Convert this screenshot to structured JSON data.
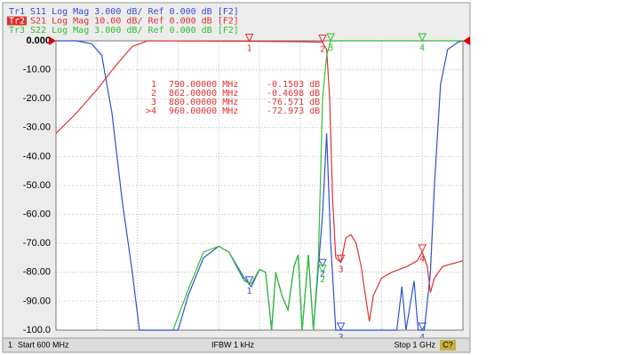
{
  "chart_data": {
    "type": "line",
    "xlim": [
      600,
      1000
    ],
    "ylim": [
      -100,
      0
    ],
    "xticks": [
      600,
      640,
      680,
      720,
      760,
      800,
      840,
      880,
      920,
      960,
      1000
    ],
    "yticks": [
      {
        "value": 0,
        "label": "0.000"
      },
      {
        "value": -10,
        "label": "-10.00"
      },
      {
        "value": -20,
        "label": "-20.00"
      },
      {
        "value": -30,
        "label": "-30.00"
      },
      {
        "value": -40,
        "label": "-40.00"
      },
      {
        "value": -50,
        "label": "-50.00"
      },
      {
        "value": -60,
        "label": "-60.00"
      },
      {
        "value": -70,
        "label": "-70.00"
      },
      {
        "value": -80,
        "label": "-80.00"
      },
      {
        "value": -90,
        "label": "-90.00"
      },
      {
        "value": -100,
        "label": "-100.0"
      }
    ],
    "grid": true,
    "series": [
      {
        "trace": "Tr1",
        "name": "S11 Log Mag 3.000 dB/ Ref 0.000 dB [F2]",
        "color": "#3050d0",
        "x": [
          600,
          620,
          635,
          645,
          655,
          665,
          675,
          682,
          720,
          730,
          745,
          760,
          770,
          785,
          792,
          800,
          806,
          812,
          816,
          822,
          828,
          834,
          838,
          842,
          848,
          853,
          858,
          862,
          866,
          870,
          875,
          935,
          940,
          944,
          952,
          956,
          962,
          968,
          972,
          978,
          985,
          995,
          1000
        ],
        "values": [
          0,
          0,
          -1,
          -5,
          -25,
          -55,
          -80,
          -100,
          -100,
          -88,
          -75,
          -71,
          -73,
          -82,
          -85,
          -79,
          -80,
          -100,
          -80,
          -88,
          -93,
          -78,
          -74,
          -100,
          -74,
          -100,
          -78,
          -60,
          -32,
          -70,
          -100,
          -100,
          -85,
          -100,
          -83,
          -100,
          -100,
          -80,
          -50,
          -15,
          -3,
          -0.5,
          0
        ],
        "markers": [
          {
            "label": "1",
            "x": 790,
            "value": -84
          },
          {
            "label": "2",
            "x": 862,
            "value": -78
          },
          {
            "label": "3",
            "x": 880,
            "value": -100
          },
          {
            "label": "4",
            "x": 960,
            "value": -100
          }
        ]
      },
      {
        "trace": "Tr2",
        "name": "S21 Log Mag 10.00 dB/ Ref 0.000 dB [F2]",
        "color": "#e03030",
        "x": [
          600,
          620,
          640,
          660,
          675,
          690,
          790,
          840,
          862,
          866,
          869,
          872,
          875,
          880,
          885,
          890,
          895,
          900,
          905,
          908,
          912,
          920,
          930,
          945,
          955,
          960,
          965,
          968,
          972,
          980,
          990,
          1000
        ],
        "values": [
          -32,
          -25,
          -17,
          -8,
          -2,
          0,
          -0.15,
          -0.3,
          -0.47,
          -3,
          -20,
          -55,
          -75,
          -76.6,
          -68,
          -67,
          -70,
          -78,
          -90,
          -97,
          -88,
          -82,
          -80,
          -78,
          -76,
          -73,
          -78,
          -87,
          -82,
          -78,
          -77,
          -76
        ],
        "markers": [
          {
            "label": "1",
            "x": 790,
            "value": -0.1503
          },
          {
            "label": "2",
            "x": 862,
            "value": -0.4698
          },
          {
            "label": "3",
            "x": 880,
            "value": -76.571
          },
          {
            "label": "4",
            "x": 960,
            "value": -72.973
          }
        ]
      },
      {
        "trace": "Tr3",
        "name": "S22 Log Mag 3.000 dB/ Ref 0.000 dB [F2]",
        "color": "#30c030",
        "x": [
          715,
          730,
          745,
          760,
          770,
          785,
          792,
          800,
          806,
          812,
          816,
          822,
          828,
          834,
          838,
          842,
          848,
          853,
          858,
          862,
          866,
          870,
          1000
        ],
        "values": [
          -100,
          -86,
          -73,
          -71,
          -73,
          -83,
          -84,
          -79,
          -80,
          -100,
          -80,
          -88,
          -93,
          -78,
          -74,
          -100,
          -74,
          -100,
          -75,
          -20,
          -5,
          0,
          0
        ],
        "markers": [
          {
            "label": "2",
            "x": 862,
            "value": -80
          },
          {
            "label": "3",
            "x": 870,
            "value": 0
          },
          {
            "label": "4",
            "x": 960,
            "value": 0
          }
        ]
      }
    ],
    "marker_readout": [
      [
        "1",
        "790.00000 MHz",
        "-0.1503 dB"
      ],
      [
        "2",
        "862.00000 MHz",
        "-0.4698 dB"
      ],
      [
        "3",
        "880.00000 MHz",
        "-76.571 dB"
      ],
      [
        ">4",
        "960.00000 MHz",
        "-72.973 dB"
      ]
    ],
    "status_bar": {
      "channel": "1",
      "start": "Start 600 MHz",
      "ifbw": "IFBW 1 kHz",
      "stop": "Stop 1 GHz",
      "cal": "C?"
    }
  }
}
